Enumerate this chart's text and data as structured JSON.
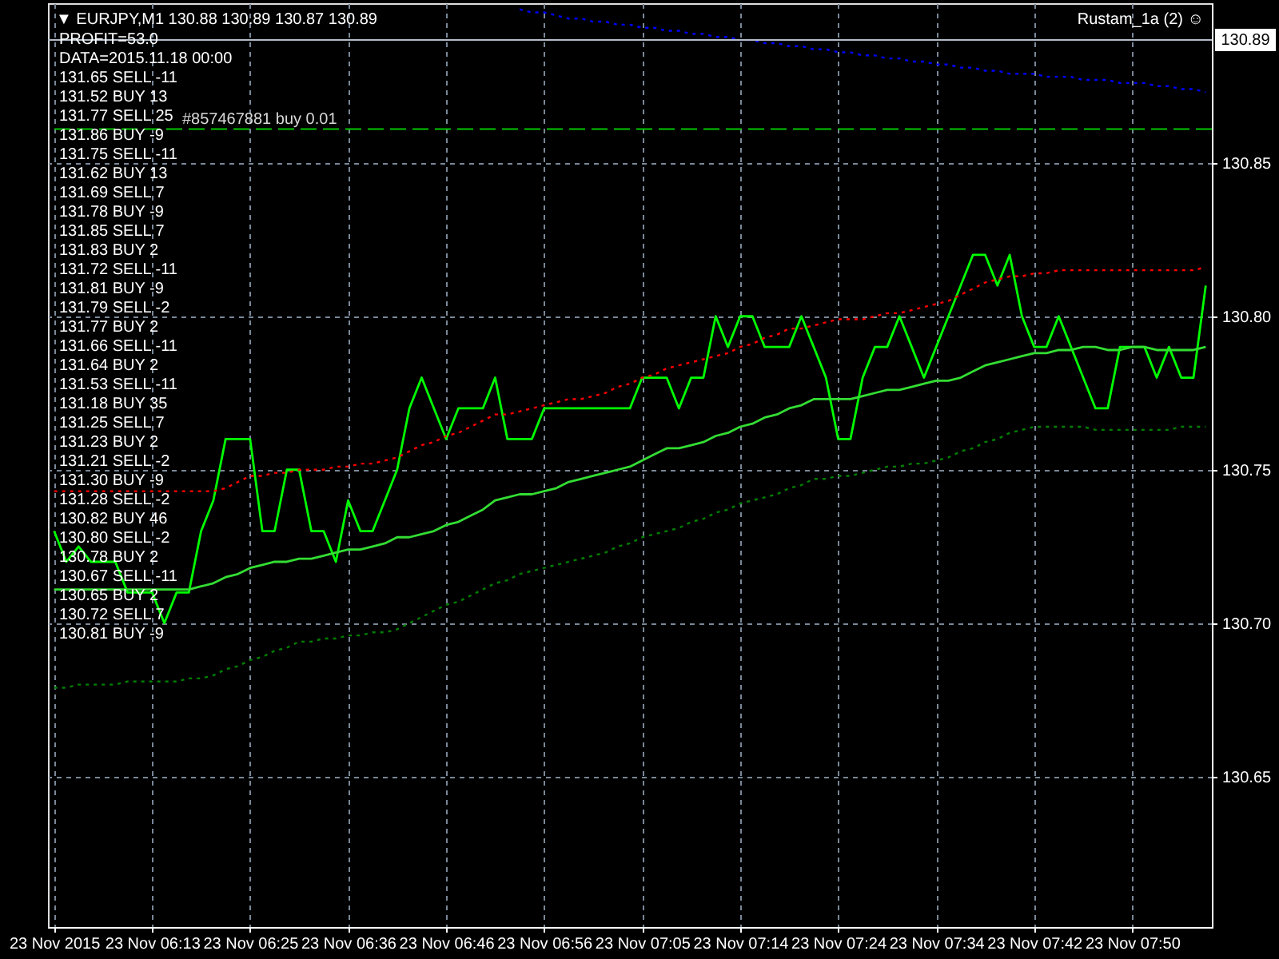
{
  "chart_data": {
    "type": "line",
    "title": "▼ EURJPY,M1 130.88 130.89 130.87 130.89",
    "categories": [
      "23 Nov 2015",
      null,
      null,
      null,
      null,
      null,
      null,
      null,
      "23 Nov 06:13",
      null,
      null,
      null,
      null,
      null,
      null,
      null,
      "23 Nov 06:25",
      null,
      null,
      null,
      null,
      null,
      null,
      null,
      "23 Nov 06:36",
      null,
      null,
      null,
      null,
      null,
      null,
      null,
      "23 Nov 06:46",
      null,
      null,
      null,
      null,
      null,
      null,
      null,
      "23 Nov 06:56",
      null,
      null,
      null,
      null,
      null,
      null,
      null,
      "23 Nov 07:05",
      null,
      null,
      null,
      null,
      null,
      null,
      null,
      "23 Nov 07:14",
      null,
      null,
      null,
      null,
      null,
      null,
      null,
      "23 Nov 07:24",
      null,
      null,
      null,
      null,
      null,
      null,
      null,
      "23 Nov 07:34",
      null,
      null,
      null,
      null,
      null,
      null,
      null,
      "23 Nov 07:42",
      null,
      null,
      null,
      null,
      null,
      null,
      null,
      "23 Nov 07:50",
      null,
      null,
      null,
      null,
      null,
      null
    ],
    "ylim": [
      130.601,
      130.902
    ],
    "yticks": [
      130.65,
      {
        "value": 130.7,
        "label": "130.70"
      },
      130.75,
      {
        "value": 130.8,
        "label": "130.80"
      },
      130.85
    ],
    "grid": true,
    "series": [
      {
        "color": "#00ff00",
        "values": [
          130.73,
          130.72,
          130.725,
          130.72,
          130.72,
          130.72,
          130.71,
          130.71,
          130.71,
          130.7,
          130.71,
          130.71,
          130.73,
          130.74,
          130.76,
          130.76,
          130.76,
          130.73,
          130.73,
          130.75,
          130.75,
          130.73,
          130.73,
          130.72,
          130.74,
          130.73,
          130.73,
          130.74,
          130.75,
          130.77,
          130.78,
          130.77,
          130.76,
          130.77,
          130.77,
          130.77,
          130.78,
          130.76,
          130.76,
          130.76,
          130.77,
          130.77,
          130.77,
          130.77,
          130.77,
          130.77,
          130.77,
          130.77,
          130.78,
          130.78,
          130.78,
          130.77,
          130.78,
          130.78,
          130.8,
          130.79,
          130.8,
          130.8,
          130.79,
          130.79,
          130.79,
          130.8,
          130.79,
          130.78,
          130.76,
          130.76,
          130.78,
          130.79,
          130.79,
          130.8,
          130.79,
          130.78,
          130.79,
          130.8,
          130.81,
          130.82,
          130.82,
          130.81,
          130.82,
          130.8,
          130.79,
          130.79,
          130.8,
          130.79,
          130.78,
          130.77,
          130.77,
          130.79,
          130.79,
          130.79,
          130.78,
          130.79,
          130.78,
          130.78,
          130.81
        ]
      },
      {
        "color": "#33dd33",
        "values": [
          130.711,
          130.711,
          130.711,
          130.711,
          130.711,
          130.711,
          130.711,
          130.711,
          130.711,
          130.711,
          130.711,
          130.711,
          130.712,
          130.713,
          130.715,
          130.716,
          130.718,
          130.719,
          130.72,
          130.72,
          130.721,
          130.721,
          130.722,
          130.723,
          130.724,
          130.724,
          130.725,
          130.726,
          130.728,
          130.728,
          130.729,
          130.73,
          130.732,
          130.733,
          130.735,
          130.737,
          130.74,
          130.741,
          130.742,
          130.742,
          130.743,
          130.744,
          130.746,
          130.747,
          130.748,
          130.749,
          130.75,
          130.751,
          130.753,
          130.755,
          130.757,
          130.757,
          130.758,
          130.759,
          130.761,
          130.762,
          130.764,
          130.765,
          130.767,
          130.768,
          130.77,
          130.771,
          130.773,
          130.773,
          130.773,
          130.773,
          130.774,
          130.775,
          130.776,
          130.776,
          130.777,
          130.778,
          130.779,
          130.779,
          130.78,
          130.782,
          130.784,
          130.785,
          130.786,
          130.787,
          130.788,
          130.788,
          130.789,
          130.789,
          130.79,
          130.79,
          130.789,
          130.789,
          130.79,
          130.79,
          130.789,
          130.789,
          130.789,
          130.789,
          130.79
        ]
      },
      {
        "color": "#ff0000",
        "line_style": "dotted",
        "values": [
          130.743,
          130.743,
          130.743,
          130.743,
          130.743,
          130.743,
          130.743,
          130.743,
          130.743,
          130.743,
          130.743,
          130.743,
          130.743,
          130.743,
          130.744,
          130.746,
          130.748,
          130.748,
          130.749,
          130.749,
          130.75,
          130.75,
          130.75,
          130.751,
          130.751,
          130.752,
          130.752,
          130.753,
          130.754,
          130.756,
          130.758,
          130.759,
          130.761,
          130.762,
          130.764,
          130.766,
          130.768,
          130.768,
          130.769,
          130.77,
          130.771,
          130.772,
          130.773,
          130.773,
          130.774,
          130.775,
          130.777,
          130.778,
          130.78,
          130.781,
          130.783,
          130.784,
          130.785,
          130.786,
          130.787,
          130.788,
          130.79,
          130.791,
          130.793,
          130.794,
          130.796,
          130.796,
          130.797,
          130.798,
          130.799,
          130.799,
          130.799,
          130.8,
          130.801,
          130.801,
          130.802,
          130.803,
          130.804,
          130.805,
          130.807,
          130.809,
          130.811,
          130.812,
          130.813,
          130.813,
          130.814,
          130.814,
          130.815,
          130.815,
          130.815,
          130.815,
          130.815,
          130.815,
          130.815,
          130.815,
          130.815,
          130.815,
          130.815,
          130.815,
          130.816
        ]
      },
      {
        "color": "#008000",
        "line_style": "dotted",
        "values": [
          130.679,
          130.679,
          130.68,
          130.68,
          130.68,
          130.68,
          130.681,
          130.681,
          130.681,
          130.681,
          130.681,
          130.682,
          130.682,
          130.683,
          130.685,
          130.686,
          130.688,
          130.689,
          130.691,
          130.692,
          130.694,
          130.694,
          130.695,
          130.695,
          130.696,
          130.696,
          130.697,
          130.697,
          130.698,
          130.7,
          130.702,
          130.704,
          130.706,
          130.707,
          130.709,
          130.711,
          130.713,
          130.714,
          130.716,
          130.717,
          130.718,
          130.719,
          130.72,
          130.721,
          130.722,
          130.723,
          130.725,
          130.726,
          130.728,
          130.729,
          130.73,
          130.731,
          130.733,
          130.734,
          130.736,
          130.737,
          130.739,
          130.74,
          130.741,
          130.742,
          130.744,
          130.745,
          130.747,
          130.747,
          130.748,
          130.748,
          130.749,
          130.75,
          130.751,
          130.751,
          130.752,
          130.752,
          130.753,
          130.754,
          130.756,
          130.757,
          130.759,
          130.76,
          130.762,
          130.763,
          130.764,
          130.764,
          130.764,
          130.764,
          130.764,
          130.763,
          130.763,
          130.763,
          130.763,
          130.763,
          130.763,
          130.763,
          130.764,
          130.764,
          130.764
        ]
      },
      {
        "color": "#0000ff",
        "line_style": "dotted",
        "values": [
          null,
          null,
          null,
          null,
          null,
          null,
          null,
          null,
          null,
          null,
          null,
          null,
          null,
          null,
          null,
          null,
          null,
          null,
          null,
          null,
          null,
          null,
          null,
          null,
          null,
          null,
          null,
          null,
          null,
          null,
          null,
          null,
          null,
          null,
          null,
          null,
          null,
          null,
          130.9,
          130.899,
          130.899,
          130.898,
          130.897,
          130.897,
          130.896,
          130.896,
          130.895,
          130.895,
          130.894,
          130.894,
          130.893,
          130.893,
          130.892,
          130.892,
          130.891,
          130.891,
          130.89,
          130.89,
          130.889,
          130.889,
          130.888,
          130.888,
          130.887,
          130.887,
          130.886,
          130.886,
          130.885,
          130.885,
          130.884,
          130.884,
          130.883,
          130.883,
          130.882,
          130.882,
          130.881,
          130.881,
          130.88,
          130.88,
          130.879,
          130.879,
          130.879,
          130.878,
          130.878,
          130.878,
          130.877,
          130.877,
          130.877,
          130.876,
          130.876,
          130.876,
          130.875,
          130.875,
          130.874,
          130.874,
          130.873
        ]
      }
    ],
    "ref_lines": [
      {
        "axis": "y",
        "value": 130.89,
        "label": "130.89",
        "color": "#b4bcc8"
      },
      {
        "axis": "y",
        "value": 130.861,
        "label": "#857467881 buy 0.01",
        "color": "#00c800",
        "line_style": "dashed"
      }
    ],
    "annotations": [
      "Rustam_1a (2) ☺",
      "PROFIT=53.0",
      "DATA=2015.11.18 00:00",
      "131.65 SELL -11",
      "131.52 BUY 13",
      "131.77 SELL 25",
      "131.86 BUY -9",
      "131.75 SELL -11",
      "131.62 BUY 13",
      "131.69 SELL 7",
      "131.78 BUY -9",
      "131.85 SELL 7",
      "131.83 BUY 2",
      "131.72 SELL -11",
      "131.81 BUY -9",
      "131.79 SELL -2",
      "131.77 BUY 2",
      "131.66 SELL -11",
      "131.64 BUY 2",
      "131.53 SELL -11",
      "131.18 BUY 35",
      "131.25 SELL 7",
      "131.23 BUY 2",
      "131.21 SELL -2",
      "131.30 BUY -9",
      "131.28 SELL -2",
      "130.82 BUY 46",
      "130.80 SELL -2",
      "130.78 BUY 2",
      "130.67 SELL -11",
      "130.65 BUY 2",
      "130.72 SELL 7",
      "130.81 BUY -9"
    ]
  }
}
